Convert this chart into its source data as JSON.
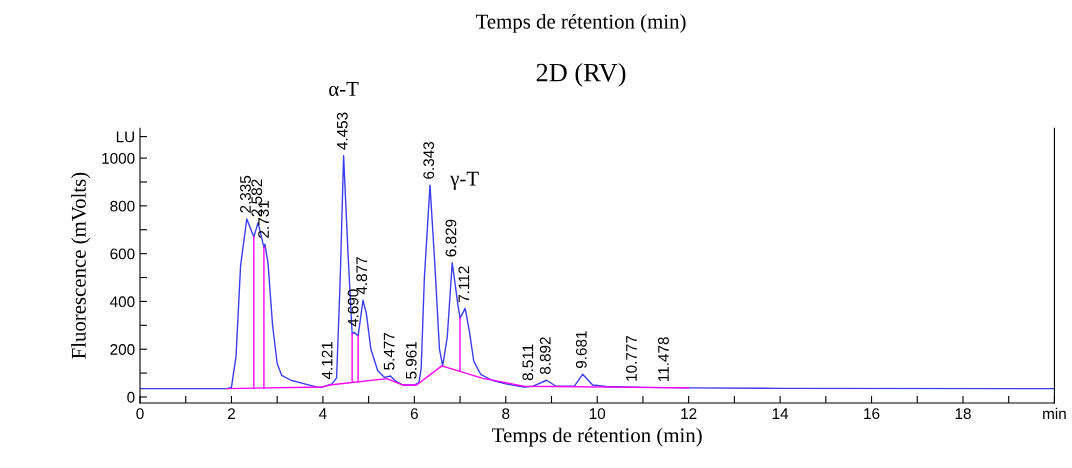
{
  "chart_data": {
    "type": "line",
    "title": "2D (RV)",
    "xlabel": "Temps de rétention (min)",
    "ylabel": "Fluorescence (mVolts)",
    "xlim": [
      0,
      20
    ],
    "ylim": [
      -25,
      1125
    ],
    "xticks": [
      0,
      {
        "value": 1,
        "label": null
      },
      2,
      {
        "value": 3,
        "label": null
      },
      4,
      {
        "value": 5,
        "label": null
      },
      6,
      {
        "value": 7,
        "label": null
      },
      8,
      {
        "value": 9,
        "label": null
      },
      10,
      {
        "value": 11,
        "label": null
      },
      12,
      {
        "value": 13,
        "label": null
      },
      14,
      {
        "value": 15,
        "label": null
      },
      16,
      {
        "value": 17,
        "label": null
      },
      18,
      {
        "value": 19,
        "label": null
      },
      {
        "value": 20,
        "label": "min"
      }
    ],
    "yticks": [
      0,
      {
        "value": 100,
        "label": null
      },
      200,
      {
        "value": 300,
        "label": null
      },
      400,
      {
        "value": 500,
        "label": null
      },
      600,
      {
        "value": 700,
        "label": null
      },
      800,
      {
        "value": 900,
        "label": null
      },
      1000,
      {
        "value": 1090,
        "label": "LU"
      }
    ],
    "grid": false,
    "legend": false,
    "marker": "none",
    "line_style": "solid",
    "series": [
      {
        "color": "#3c3cf0",
        "x": [
          0,
          1.9,
          2.0,
          2.1,
          2.2,
          2.335,
          2.49,
          2.582,
          2.71,
          2.731,
          2.8,
          2.9,
          3.0,
          3.1,
          3.3,
          3.6,
          3.9,
          4.0,
          4.2,
          4.3,
          4.38,
          4.453,
          4.55,
          4.64,
          4.69,
          4.77,
          4.877,
          4.95,
          5.05,
          5.2,
          5.35,
          5.477,
          5.6,
          5.75,
          6.0,
          6.1,
          6.15,
          6.22,
          6.343,
          6.45,
          6.55,
          6.62,
          6.72,
          6.829,
          6.95,
          7.0,
          7.112,
          7.2,
          7.3,
          7.45,
          7.7,
          8.0,
          8.4,
          8.6,
          8.892,
          9.1,
          9.5,
          9.681,
          9.9,
          10.2,
          11,
          12,
          14,
          20
        ],
        "values": [
          35,
          35,
          40,
          170,
          550,
          745,
          670,
          730,
          627,
          640,
          560,
          300,
          140,
          90,
          70,
          55,
          40,
          42,
          55,
          80,
          500,
          1010,
          600,
          265,
          270,
          255,
          405,
          350,
          200,
          110,
          82,
          88,
          65,
          50,
          50,
          60,
          120,
          500,
          887,
          550,
          200,
          130,
          250,
          562,
          390,
          330,
          371,
          280,
          150,
          95,
          70,
          55,
          42,
          45,
          70,
          45,
          45,
          95,
          50,
          44,
          40,
          38,
          36,
          35
        ]
      },
      {
        "color": "#ff00ff",
        "x": [
          1.9,
          4.0,
          4.15,
          5.4,
          5.75,
          6.05,
          6.6,
          7.5,
          8.4,
          12
        ],
        "values": [
          35,
          42,
          50,
          77,
          50,
          50,
          130,
          78,
          45,
          38
        ]
      },
      {
        "color": "#ff00ff",
        "x": [
          2.49,
          2.49,
          null,
          2.71,
          2.71,
          null,
          4.64,
          4.64,
          null,
          4.77,
          4.77,
          null,
          7.0,
          7.0
        ],
        "values": [
          37,
          670,
          null,
          38,
          627,
          null,
          62,
          265,
          null,
          65,
          255,
          null,
          110,
          330
        ]
      }
    ],
    "annotations": [
      "Temps de rétention (min)",
      {
        "text": "α-T",
        "x": 4.453,
        "y": 1010
      },
      "γ-T",
      {
        "text": "2.335",
        "x": 2.335,
        "y": 745
      },
      {
        "text": "2.582",
        "x": 2.582,
        "y": 730
      },
      {
        "text": "2.731",
        "x": 2.731,
        "y": 640
      },
      {
        "text": "4.121",
        "x": 4.121,
        "y": 50
      },
      {
        "text": "4.453",
        "x": 4.453,
        "y": 1010
      },
      {
        "text": "4.690",
        "x": 4.69,
        "y": 270
      },
      {
        "text": "4.877",
        "x": 4.877,
        "y": 405
      },
      {
        "text": "5.477",
        "x": 5.477,
        "y": 88
      },
      {
        "text": "5.961",
        "x": 5.961,
        "y": 50
      },
      {
        "text": "6.343",
        "x": 6.343,
        "y": 887
      },
      {
        "text": "6.829",
        "x": 6.829,
        "y": 562
      },
      {
        "text": "7.112",
        "x": 7.112,
        "y": 371
      },
      {
        "text": "8.511",
        "x": 8.511,
        "y": 44
      },
      {
        "text": "8.892",
        "x": 8.892,
        "y": 70
      },
      {
        "text": "9.681",
        "x": 9.681,
        "y": 95
      },
      {
        "text": "10.777",
        "x": 10.777,
        "y": 40
      },
      {
        "text": "11.478",
        "x": 11.478,
        "y": 39
      }
    ]
  }
}
